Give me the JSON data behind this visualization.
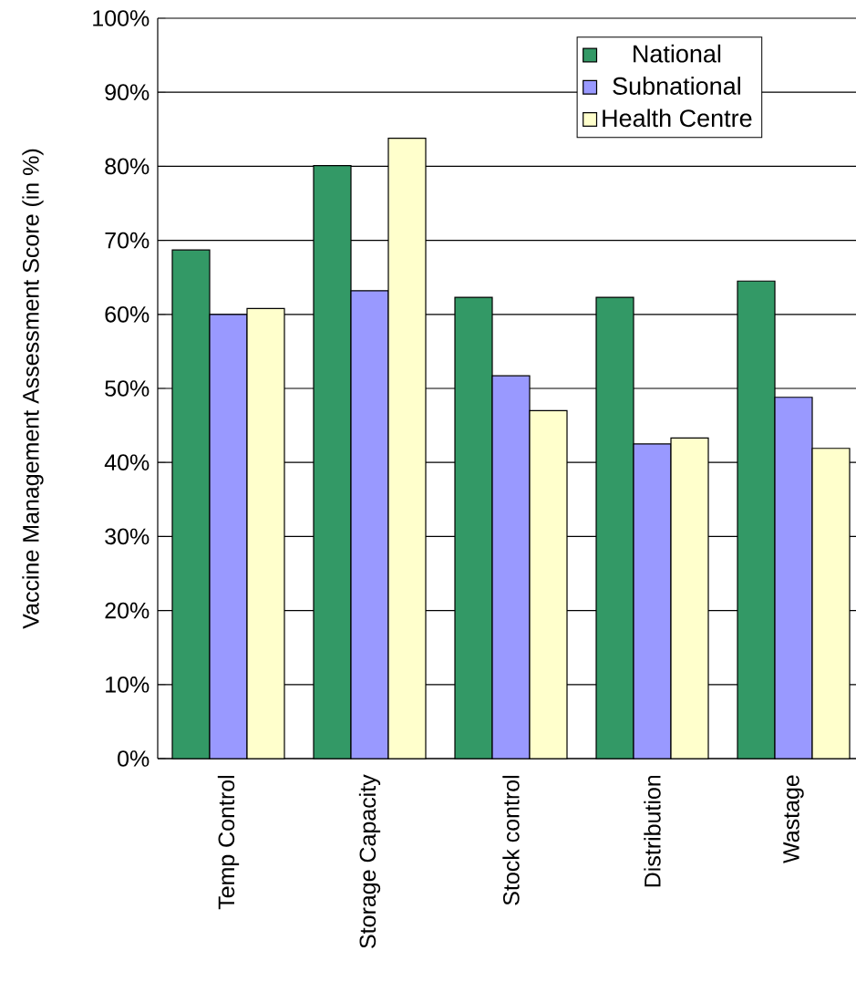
{
  "chart_data": {
    "type": "bar",
    "ylabel": "Vaccine Management Assessment Score (in %)",
    "categories": [
      "Temp Control",
      "Storage Capacity",
      "Stock control",
      "Distribution",
      "Wastage"
    ],
    "series": [
      {
        "name": "National",
        "color": "#339966",
        "values": [
          68.7,
          80.1,
          62.3,
          62.3,
          64.5
        ]
      },
      {
        "name": "Subnational",
        "color": "#9999ff",
        "values": [
          60.0,
          63.2,
          51.7,
          42.5,
          48.8
        ]
      },
      {
        "name": "Health Centre",
        "color": "#ffffcc",
        "values": [
          60.8,
          83.8,
          47.0,
          43.3,
          41.9
        ]
      }
    ],
    "ylim": [
      0,
      100
    ],
    "yticks": [
      {
        "value": 0,
        "label": "0%"
      },
      {
        "value": 10,
        "label": "10%"
      },
      {
        "value": 20,
        "label": "20%"
      },
      {
        "value": 30,
        "label": "30%"
      },
      {
        "value": 40,
        "label": "40%"
      },
      {
        "value": 50,
        "label": "50%"
      },
      {
        "value": 60,
        "label": "60%"
      },
      {
        "value": 70,
        "label": "70%"
      },
      {
        "value": 80,
        "label": "80%"
      },
      {
        "value": 90,
        "label": "90%"
      },
      {
        "value": 100,
        "label": "100%"
      }
    ],
    "grid": "y",
    "legend": "top right"
  }
}
